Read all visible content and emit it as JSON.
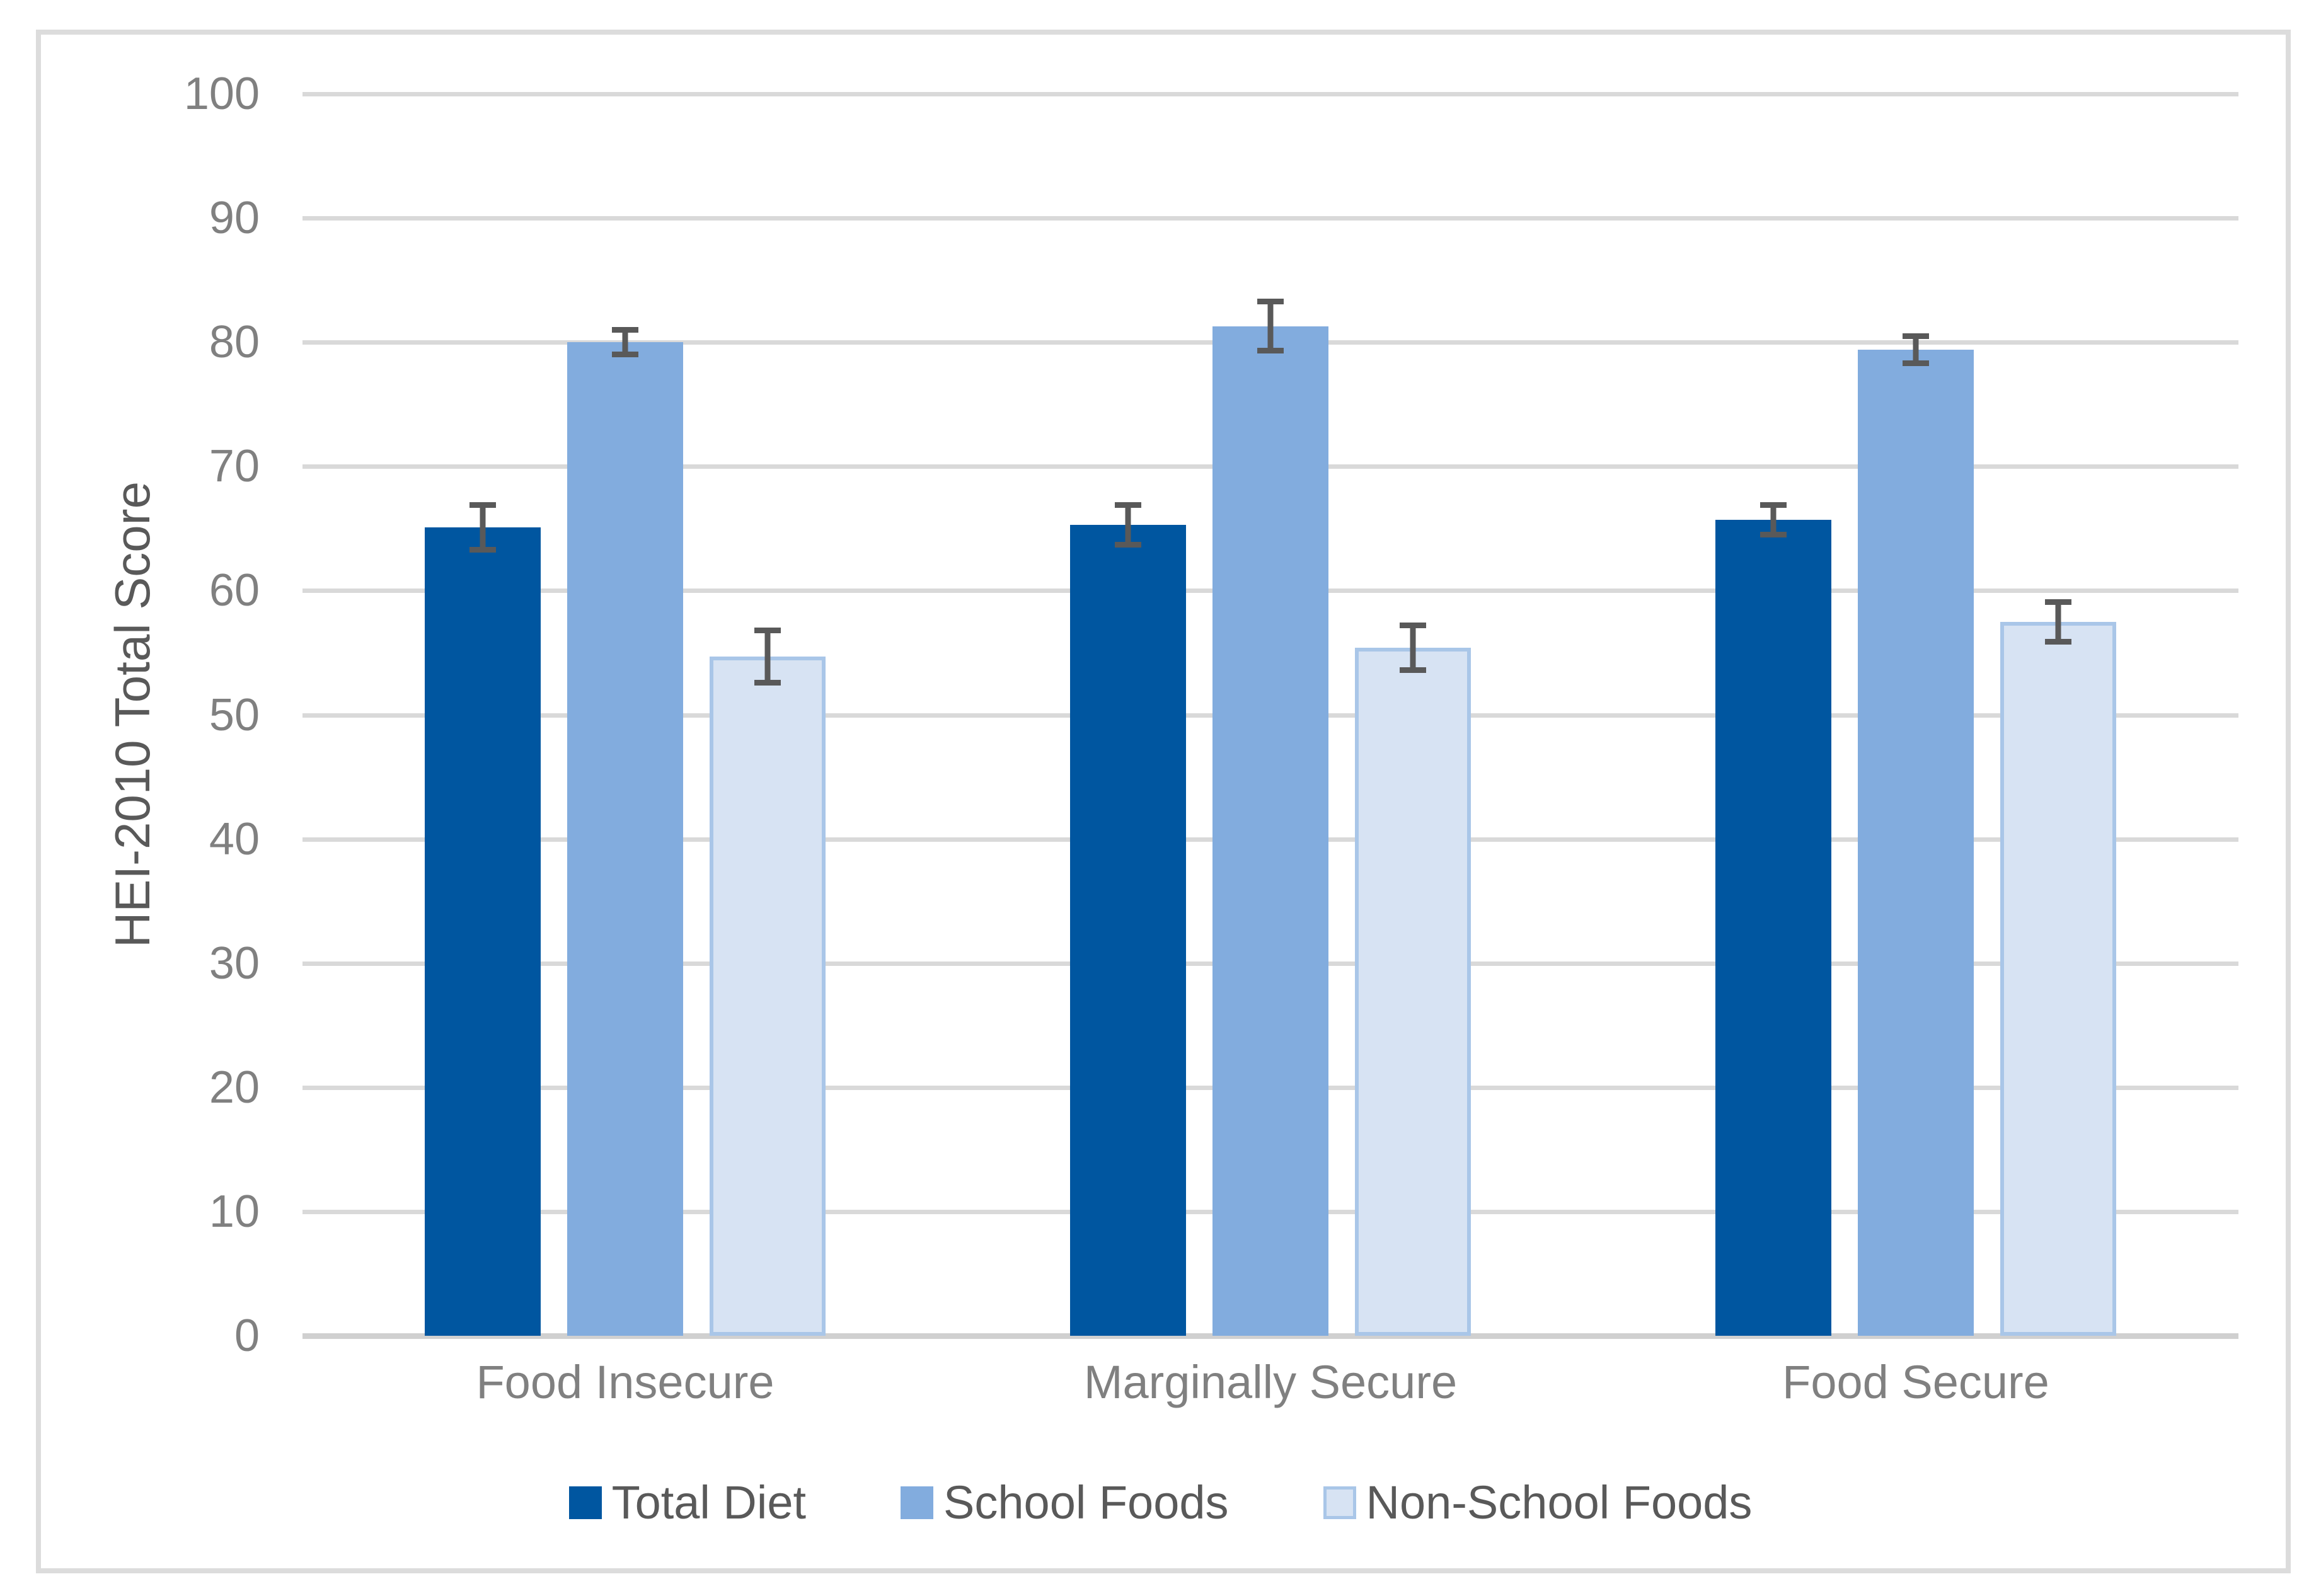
{
  "figure": {
    "background_color": "#FFFFFF",
    "border_color": "#DCDCDC"
  },
  "y_axis": {
    "title": "HEI-2010 Total Score",
    "tick_min": 0,
    "tick_max": 100,
    "tick_step": 10,
    "tick_color": "#808080",
    "title_color": "#595959"
  },
  "x_axis": {
    "label_color": "#808080"
  },
  "chart_data": {
    "type": "bar",
    "title": "",
    "xlabel": "",
    "ylabel": "HEI-2010 Total Score",
    "ylim": [
      0,
      100
    ],
    "grid": true,
    "gridline_color": "#D9D9D9",
    "axis_line_color": "#D0D0D0",
    "error_bar_color": "#595959",
    "legend_position": "bottom",
    "categories": [
      "Food Insecure",
      "Marginally Secure",
      "Food Secure"
    ],
    "series": [
      {
        "name": "Total Diet",
        "color": "#0056A0",
        "border_color": null,
        "values": [
          65.1,
          65.3,
          65.7
        ],
        "errors": [
          1.8,
          1.6,
          1.2
        ]
      },
      {
        "name": "School Foods",
        "color": "#82ACDE",
        "border_color": null,
        "values": [
          80.0,
          81.3,
          79.4
        ],
        "errors": [
          1.0,
          2.0,
          1.1
        ]
      },
      {
        "name": "Non-School Foods",
        "color": "#D7E3F3",
        "border_color": "#A9C6E8",
        "values": [
          54.7,
          55.4,
          57.5
        ],
        "errors": [
          2.1,
          1.8,
          1.6
        ]
      }
    ],
    "legend": [
      "Total Diet",
      "School Foods",
      "Non-School Foods"
    ]
  }
}
